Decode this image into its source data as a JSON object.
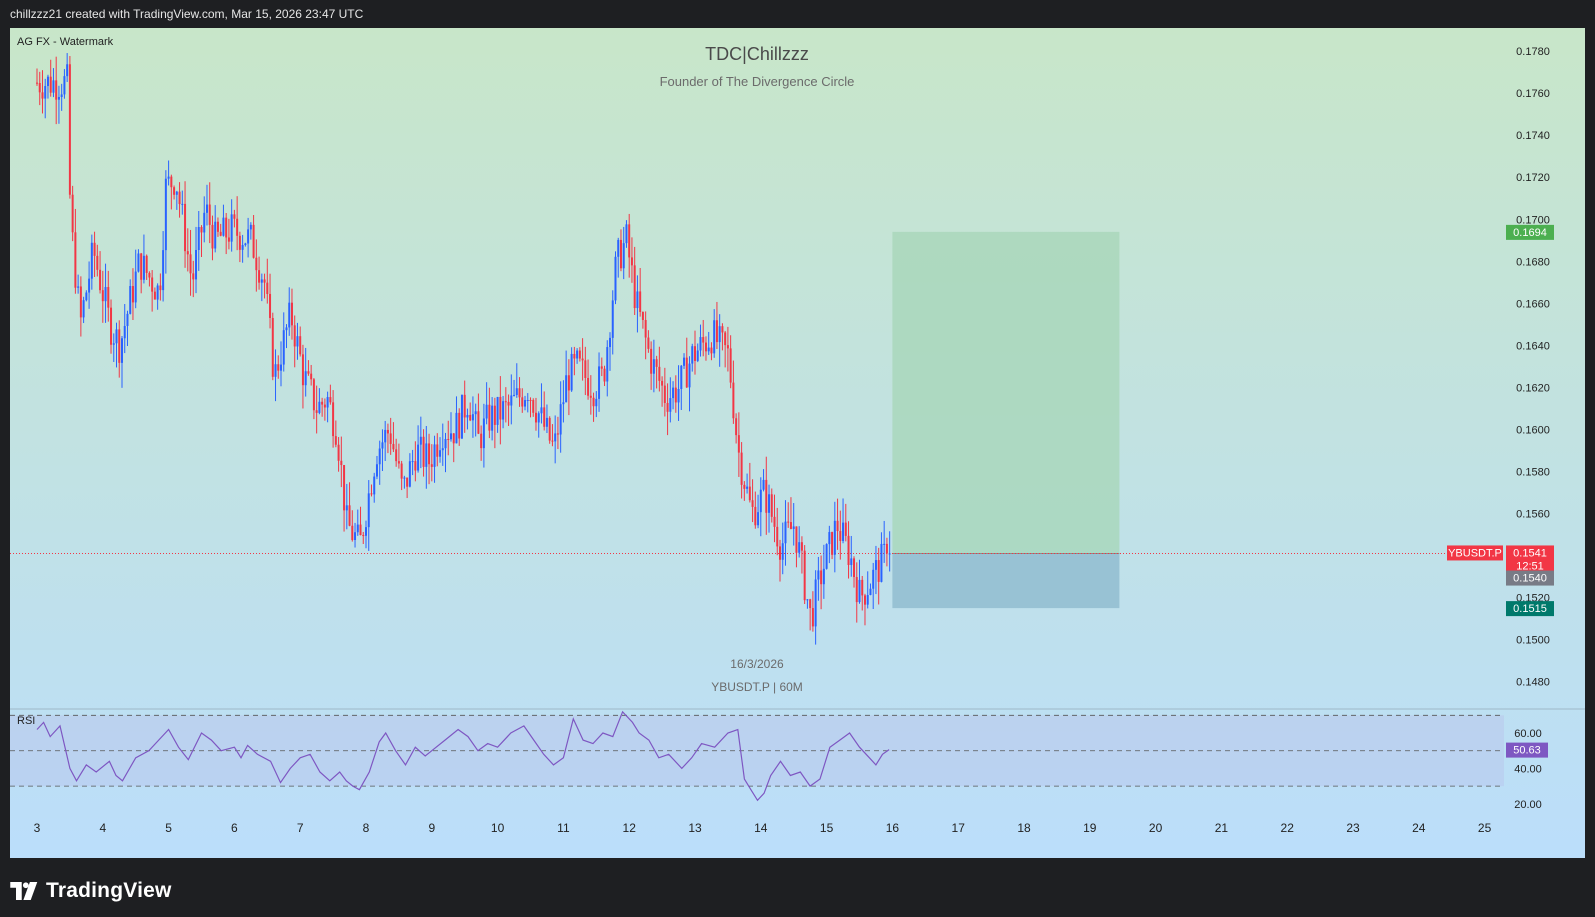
{
  "header": {
    "caption": "chillzzz21 created with TradingView.com, Mar 15, 2026 23:47 UTC"
  },
  "watermark": {
    "label": "AG FX - Watermark"
  },
  "titles": {
    "main": "TDC|Chillzzz",
    "sub": "Founder of The Divergence Circle",
    "date": "16/3/2026",
    "symbol_tf": "YBUSDT.P | 60M"
  },
  "footer": {
    "brand": "TradingView"
  },
  "colors": {
    "up": "#2962ff",
    "down": "#f23645",
    "rsi": "#7e57c2",
    "target_zone": "#a5d6b7",
    "stop_zone": "#90bcd0",
    "bg_top": "#c8e6c9",
    "bg_bottom": "#bbdefb"
  },
  "chart_data": [
    {
      "type": "candlestick",
      "symbol": "YBUSDT.P",
      "timeframe": "60M",
      "x_tick_labels": [
        "3",
        "4",
        "5",
        "6",
        "7",
        "8",
        "9",
        "10",
        "11",
        "12",
        "13",
        "14",
        "15",
        "16",
        "17",
        "18",
        "19",
        "20",
        "21",
        "22",
        "23",
        "24",
        "25"
      ],
      "y_ticks": [
        "0.1780",
        "0.1760",
        "0.1740",
        "0.1720",
        "0.1700",
        "0.1680",
        "0.1660",
        "0.1640",
        "0.1620",
        "0.1600",
        "0.1580",
        "0.1560",
        "0.1540",
        "0.1520",
        "0.1500",
        "0.1480"
      ],
      "ylim": [
        0.1467,
        0.1791
      ],
      "close_path_by_day": [
        {
          "day": 3.0,
          "close": 0.1765
        },
        {
          "day": 3.5,
          "close": 0.1765
        },
        {
          "day": 3.55,
          "close": 0.17
        },
        {
          "day": 3.7,
          "close": 0.165
        },
        {
          "day": 3.9,
          "close": 0.1685
        },
        {
          "day": 4.15,
          "close": 0.165
        },
        {
          "day": 4.3,
          "close": 0.164
        },
        {
          "day": 4.6,
          "close": 0.168
        },
        {
          "day": 4.9,
          "close": 0.1665
        },
        {
          "day": 5.0,
          "close": 0.1715
        },
        {
          "day": 5.15,
          "close": 0.172
        },
        {
          "day": 5.4,
          "close": 0.167
        },
        {
          "day": 5.6,
          "close": 0.1705
        },
        {
          "day": 5.75,
          "close": 0.169
        },
        {
          "day": 6.0,
          "close": 0.1695
        },
        {
          "day": 6.3,
          "close": 0.169
        },
        {
          "day": 6.5,
          "close": 0.167
        },
        {
          "day": 6.65,
          "close": 0.1625
        },
        {
          "day": 6.9,
          "close": 0.1655
        },
        {
          "day": 7.1,
          "close": 0.1625
        },
        {
          "day": 7.3,
          "close": 0.161
        },
        {
          "day": 7.45,
          "close": 0.1615
        },
        {
          "day": 7.6,
          "close": 0.16
        },
        {
          "day": 7.75,
          "close": 0.1555
        },
        {
          "day": 7.95,
          "close": 0.1545
        },
        {
          "day": 8.2,
          "close": 0.159
        },
        {
          "day": 8.4,
          "close": 0.16
        },
        {
          "day": 8.6,
          "close": 0.157
        },
        {
          "day": 8.8,
          "close": 0.159
        },
        {
          "day": 9.0,
          "close": 0.1585
        },
        {
          "day": 9.2,
          "close": 0.16
        },
        {
          "day": 9.4,
          "close": 0.16
        },
        {
          "day": 9.6,
          "close": 0.1615
        },
        {
          "day": 9.75,
          "close": 0.1595
        },
        {
          "day": 9.9,
          "close": 0.1605
        },
        {
          "day": 10.2,
          "close": 0.161
        },
        {
          "day": 10.5,
          "close": 0.162
        },
        {
          "day": 10.7,
          "close": 0.1605
        },
        {
          "day": 10.9,
          "close": 0.159
        },
        {
          "day": 11.1,
          "close": 0.1625
        },
        {
          "day": 11.25,
          "close": 0.163
        },
        {
          "day": 11.5,
          "close": 0.162
        },
        {
          "day": 11.65,
          "close": 0.1625
        },
        {
          "day": 11.85,
          "close": 0.168
        },
        {
          "day": 12.0,
          "close": 0.169
        },
        {
          "day": 12.15,
          "close": 0.166
        },
        {
          "day": 12.35,
          "close": 0.1635
        },
        {
          "day": 12.6,
          "close": 0.1615
        },
        {
          "day": 12.8,
          "close": 0.162
        },
        {
          "day": 13.0,
          "close": 0.1635
        },
        {
          "day": 13.3,
          "close": 0.1645
        },
        {
          "day": 13.55,
          "close": 0.1635
        },
        {
          "day": 13.7,
          "close": 0.159
        },
        {
          "day": 13.9,
          "close": 0.156
        },
        {
          "day": 14.1,
          "close": 0.157
        },
        {
          "day": 14.35,
          "close": 0.1545
        },
        {
          "day": 14.55,
          "close": 0.1555
        },
        {
          "day": 14.8,
          "close": 0.151
        },
        {
          "day": 14.95,
          "close": 0.153
        },
        {
          "day": 15.2,
          "close": 0.1555
        },
        {
          "day": 15.4,
          "close": 0.154
        },
        {
          "day": 15.55,
          "close": 0.152
        },
        {
          "day": 15.75,
          "close": 0.153
        },
        {
          "day": 15.95,
          "close": 0.1541
        }
      ],
      "last_price": 0.1541,
      "price_line": 0.1541,
      "price_labels": [
        {
          "text": "YBUSDT.P",
          "kind": "symbol",
          "color": "#f23645"
        },
        {
          "text": "0.1541",
          "value": 0.1541,
          "color": "#f23645"
        },
        {
          "text": "12:51",
          "kind": "countdown",
          "color": "#f23645"
        },
        {
          "text": "0.1540",
          "value": 0.154,
          "color": "#787b86"
        },
        {
          "text": "0.1694",
          "value": 0.1694,
          "color": "#4caf50"
        },
        {
          "text": "0.1515",
          "value": 0.1515,
          "color": "#00796b"
        }
      ],
      "position": {
        "type": "long",
        "entry": 0.1541,
        "target": 0.1694,
        "stop": 0.1515,
        "start_day": 16.0,
        "end_day": 19.45
      }
    },
    {
      "type": "line",
      "title": "RSI",
      "y_ticks": [
        "60.00",
        "40.00",
        "20.00"
      ],
      "ylim": [
        12,
        73
      ],
      "bands": [
        70,
        50,
        30
      ],
      "last_value": 50.63,
      "points": [
        [
          3.0,
          62
        ],
        [
          3.1,
          66
        ],
        [
          3.2,
          58
        ],
        [
          3.35,
          64
        ],
        [
          3.5,
          40
        ],
        [
          3.6,
          33
        ],
        [
          3.75,
          42
        ],
        [
          3.9,
          38
        ],
        [
          4.1,
          44
        ],
        [
          4.2,
          36
        ],
        [
          4.3,
          33
        ],
        [
          4.5,
          46
        ],
        [
          4.7,
          50
        ],
        [
          4.85,
          56
        ],
        [
          5.0,
          62
        ],
        [
          5.15,
          52
        ],
        [
          5.3,
          45
        ],
        [
          5.5,
          60
        ],
        [
          5.65,
          56
        ],
        [
          5.8,
          50
        ],
        [
          6.0,
          52
        ],
        [
          6.1,
          46
        ],
        [
          6.2,
          53
        ],
        [
          6.35,
          48
        ],
        [
          6.55,
          44
        ],
        [
          6.7,
          32
        ],
        [
          6.85,
          40
        ],
        [
          7.0,
          46
        ],
        [
          7.15,
          48
        ],
        [
          7.3,
          38
        ],
        [
          7.45,
          33
        ],
        [
          7.6,
          38
        ],
        [
          7.7,
          33
        ],
        [
          7.8,
          30
        ],
        [
          7.9,
          28
        ],
        [
          8.05,
          38
        ],
        [
          8.2,
          55
        ],
        [
          8.3,
          60
        ],
        [
          8.45,
          50
        ],
        [
          8.6,
          42
        ],
        [
          8.75,
          52
        ],
        [
          8.9,
          47
        ],
        [
          9.0,
          50
        ],
        [
          9.2,
          56
        ],
        [
          9.4,
          62
        ],
        [
          9.55,
          58
        ],
        [
          9.7,
          50
        ],
        [
          9.85,
          54
        ],
        [
          10.0,
          52
        ],
        [
          10.2,
          60
        ],
        [
          10.4,
          64
        ],
        [
          10.55,
          56
        ],
        [
          10.7,
          48
        ],
        [
          10.85,
          42
        ],
        [
          11.0,
          46
        ],
        [
          11.15,
          68
        ],
        [
          11.3,
          56
        ],
        [
          11.45,
          54
        ],
        [
          11.6,
          60
        ],
        [
          11.75,
          58
        ],
        [
          11.9,
          72
        ],
        [
          12.05,
          66
        ],
        [
          12.15,
          60
        ],
        [
          12.3,
          56
        ],
        [
          12.45,
          46
        ],
        [
          12.6,
          48
        ],
        [
          12.8,
          40
        ],
        [
          12.95,
          46
        ],
        [
          13.1,
          54
        ],
        [
          13.3,
          52
        ],
        [
          13.5,
          60
        ],
        [
          13.65,
          62
        ],
        [
          13.75,
          34
        ],
        [
          13.85,
          28
        ],
        [
          13.95,
          22
        ],
        [
          14.05,
          26
        ],
        [
          14.15,
          36
        ],
        [
          14.3,
          44
        ],
        [
          14.45,
          36
        ],
        [
          14.6,
          38
        ],
        [
          14.75,
          30
        ],
        [
          14.9,
          34
        ],
        [
          15.05,
          52
        ],
        [
          15.2,
          56
        ],
        [
          15.35,
          60
        ],
        [
          15.5,
          52
        ],
        [
          15.65,
          46
        ],
        [
          15.75,
          42
        ],
        [
          15.85,
          48
        ],
        [
          15.95,
          50.63
        ]
      ]
    }
  ]
}
